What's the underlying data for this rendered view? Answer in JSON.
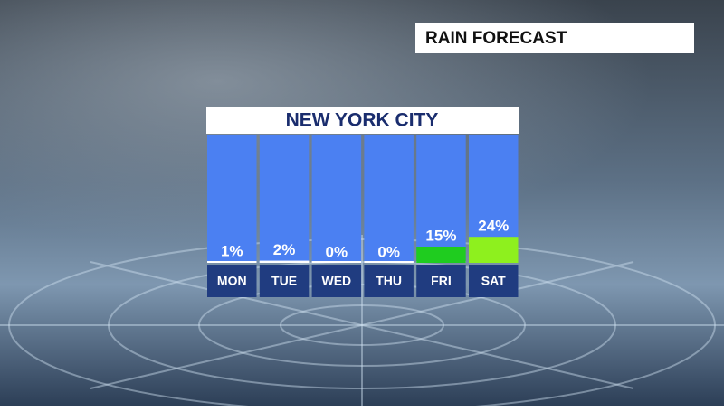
{
  "banner": "RAIN FORECAST",
  "chart_data": {
    "type": "bar",
    "title": "NEW YORK CITY",
    "categories": [
      "MON",
      "TUE",
      "WED",
      "THU",
      "FRI",
      "SAT"
    ],
    "values": [
      1,
      2,
      0,
      0,
      15,
      24
    ],
    "value_labels": [
      "1%",
      "2%",
      "0%",
      "0%",
      "15%",
      "24%"
    ],
    "colors": [
      "#ffffff",
      "#ffffff",
      "#ffffff",
      "#ffffff",
      "#1fcc1f",
      "#8ef01e"
    ]
  }
}
